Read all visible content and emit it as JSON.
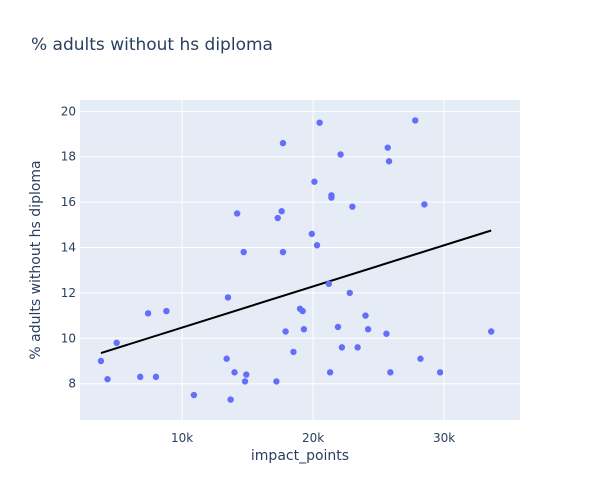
{
  "chart_data": {
    "type": "scatter",
    "title": "% adults without hs diploma",
    "xlabel": "impact_points",
    "ylabel": "% adults without hs diploma",
    "xlim": [
      2200,
      35800
    ],
    "ylim": [
      6.4,
      20.5
    ],
    "x_ticks": [
      10000,
      20000,
      30000
    ],
    "x_tick_labels": [
      "10k",
      "20k",
      "30k"
    ],
    "y_ticks": [
      8,
      10,
      12,
      14,
      16,
      18,
      20
    ],
    "y_tick_labels": [
      "8",
      "10",
      "12",
      "14",
      "16",
      "18",
      "20"
    ],
    "grid": true,
    "legend": false,
    "colors": {
      "points": "#636efa",
      "trendline": "#000000",
      "plot_bg": "#e5ecf6",
      "grid": "#ffffff",
      "text": "#2a3f5f"
    },
    "series": [
      {
        "values": [
          [
            3800,
            9.0
          ],
          [
            4300,
            8.2
          ],
          [
            5000,
            9.8
          ],
          [
            6800,
            8.3
          ],
          [
            7400,
            11.1
          ],
          [
            8000,
            8.3
          ],
          [
            8800,
            11.2
          ],
          [
            10900,
            7.5
          ],
          [
            13400,
            9.1
          ],
          [
            13500,
            11.8
          ],
          [
            13700,
            7.3
          ],
          [
            14000,
            8.5
          ],
          [
            14200,
            15.5
          ],
          [
            14700,
            13.8
          ],
          [
            14800,
            8.1
          ],
          [
            14900,
            8.4
          ],
          [
            17200,
            8.1
          ],
          [
            17300,
            15.3
          ],
          [
            17600,
            15.6
          ],
          [
            17700,
            18.6
          ],
          [
            17700,
            13.8
          ],
          [
            17900,
            10.3
          ],
          [
            18500,
            9.4
          ],
          [
            19000,
            11.3
          ],
          [
            19200,
            11.2
          ],
          [
            19300,
            10.4
          ],
          [
            19900,
            14.6
          ],
          [
            20100,
            16.9
          ],
          [
            20300,
            14.1
          ],
          [
            20500,
            19.5
          ],
          [
            21200,
            12.4
          ],
          [
            21300,
            8.5
          ],
          [
            21400,
            16.3
          ],
          [
            21400,
            16.2
          ],
          [
            21900,
            10.5
          ],
          [
            22100,
            18.1
          ],
          [
            22200,
            9.6
          ],
          [
            22800,
            12.0
          ],
          [
            23000,
            15.8
          ],
          [
            23400,
            9.6
          ],
          [
            24000,
            11.0
          ],
          [
            24200,
            10.4
          ],
          [
            25600,
            10.2
          ],
          [
            25700,
            18.4
          ],
          [
            25800,
            17.8
          ],
          [
            25900,
            8.5
          ],
          [
            27800,
            19.6
          ],
          [
            28200,
            9.1
          ],
          [
            28500,
            15.9
          ],
          [
            29700,
            8.5
          ],
          [
            33600,
            10.3
          ]
        ]
      }
    ],
    "trendline": {
      "x": [
        3800,
        33600
      ],
      "y": [
        9.35,
        14.75
      ]
    }
  }
}
